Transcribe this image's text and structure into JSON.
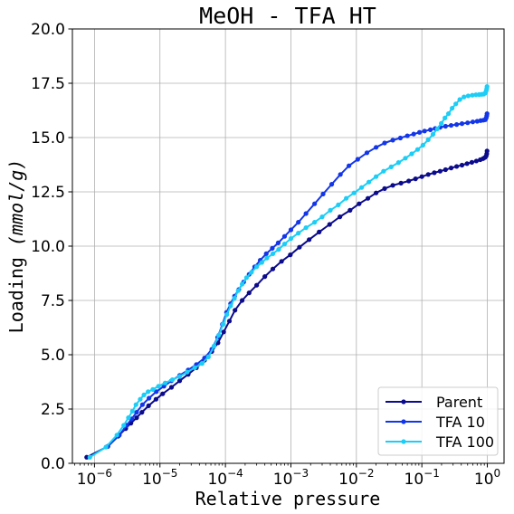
{
  "chart_data": {
    "type": "line",
    "title": "MeOH - TFA HT",
    "xlabel": "Relative pressure",
    "ylabel_main": "Loading ",
    "ylabel_unit": "(mmol/g)",
    "xscale": "log",
    "xlim": [
      4.6e-07,
      1.8
    ],
    "ylim": [
      0.0,
      20.0
    ],
    "grid": true,
    "legend_position": "lower-right",
    "x_ticks": [
      {
        "value": 1e-06,
        "base": "10",
        "exp": "−6"
      },
      {
        "value": 1e-05,
        "base": "10",
        "exp": "−5"
      },
      {
        "value": 0.0001,
        "base": "10",
        "exp": "−4"
      },
      {
        "value": 0.001,
        "base": "10",
        "exp": "−3"
      },
      {
        "value": 0.01,
        "base": "10",
        "exp": "−2"
      },
      {
        "value": 0.1,
        "base": "10",
        "exp": "−1"
      },
      {
        "value": 1,
        "base": "10",
        "exp": "0"
      }
    ],
    "y_ticks": [
      {
        "value": 0.0,
        "label": "0.0"
      },
      {
        "value": 2.5,
        "label": "2.5"
      },
      {
        "value": 5.0,
        "label": "5.0"
      },
      {
        "value": 7.5,
        "label": "7.5"
      },
      {
        "value": 10.0,
        "label": "10.0"
      },
      {
        "value": 12.5,
        "label": "12.5"
      },
      {
        "value": 15.0,
        "label": "15.0"
      },
      {
        "value": 17.5,
        "label": "17.5"
      },
      {
        "value": 20.0,
        "label": "20.0"
      }
    ],
    "series": [
      {
        "name": "Parent",
        "color": "#0b0b8c",
        "points": [
          [
            7.6e-07,
            0.28
          ],
          [
            1.6e-06,
            0.78
          ],
          [
            2.3e-06,
            1.25
          ],
          [
            3e-06,
            1.6
          ],
          [
            3.6e-06,
            1.85
          ],
          [
            4.4e-06,
            2.1
          ],
          [
            5.3e-06,
            2.35
          ],
          [
            6.7e-06,
            2.65
          ],
          [
            8.7e-06,
            2.95
          ],
          [
            1.1e-05,
            3.2
          ],
          [
            1.5e-05,
            3.5
          ],
          [
            2e-05,
            3.8
          ],
          [
            2.7e-05,
            4.1
          ],
          [
            3.6e-05,
            4.4
          ],
          [
            4.8e-05,
            4.75
          ],
          [
            6.2e-05,
            5.15
          ],
          [
            7.7e-05,
            5.55
          ],
          [
            9.4e-05,
            6.05
          ],
          [
            0.000115,
            6.55
          ],
          [
            0.00014,
            7.05
          ],
          [
            0.00018,
            7.5
          ],
          [
            0.00023,
            7.85
          ],
          [
            0.0003,
            8.2
          ],
          [
            0.0004,
            8.6
          ],
          [
            0.00053,
            8.95
          ],
          [
            0.00072,
            9.3
          ],
          [
            0.00098,
            9.6
          ],
          [
            0.00135,
            9.95
          ],
          [
            0.0019,
            10.3
          ],
          [
            0.0027,
            10.65
          ],
          [
            0.0039,
            11.0
          ],
          [
            0.0056,
            11.35
          ],
          [
            0.008,
            11.65
          ],
          [
            0.011,
            11.95
          ],
          [
            0.015,
            12.2
          ],
          [
            0.02,
            12.45
          ],
          [
            0.027,
            12.65
          ],
          [
            0.036,
            12.8
          ],
          [
            0.048,
            12.9
          ],
          [
            0.063,
            13.0
          ],
          [
            0.08,
            13.1
          ],
          [
            0.1,
            13.2
          ],
          [
            0.125,
            13.3
          ],
          [
            0.155,
            13.38
          ],
          [
            0.19,
            13.45
          ],
          [
            0.23,
            13.52
          ],
          [
            0.28,
            13.6
          ],
          [
            0.34,
            13.67
          ],
          [
            0.41,
            13.73
          ],
          [
            0.49,
            13.8
          ],
          [
            0.58,
            13.86
          ],
          [
            0.68,
            13.92
          ],
          [
            0.78,
            13.98
          ],
          [
            0.86,
            14.03
          ],
          [
            0.92,
            14.08
          ],
          [
            0.96,
            14.15
          ],
          [
            0.98,
            14.25
          ],
          [
            0.99,
            14.38
          ]
        ]
      },
      {
        "name": "TFA 10",
        "color": "#1336e8",
        "points": [
          [
            1.6e-06,
            0.78
          ],
          [
            2.4e-06,
            1.3
          ],
          [
            3.1e-06,
            1.75
          ],
          [
            3.7e-06,
            2.05
          ],
          [
            4.4e-06,
            2.35
          ],
          [
            5.4e-06,
            2.7
          ],
          [
            6.8e-06,
            3.0
          ],
          [
            8.8e-06,
            3.3
          ],
          [
            1.15e-05,
            3.55
          ],
          [
            1.5e-05,
            3.8
          ],
          [
            2e-05,
            4.05
          ],
          [
            2.7e-05,
            4.3
          ],
          [
            3.6e-05,
            4.55
          ],
          [
            4.8e-05,
            4.85
          ],
          [
            6.2e-05,
            5.25
          ],
          [
            7.6e-05,
            5.8
          ],
          [
            9e-05,
            6.4
          ],
          [
            0.000104,
            6.95
          ],
          [
            0.00012,
            7.35
          ],
          [
            0.000138,
            7.7
          ],
          [
            0.00016,
            8.0
          ],
          [
            0.00019,
            8.35
          ],
          [
            0.00023,
            8.7
          ],
          [
            0.00028,
            9.05
          ],
          [
            0.00034,
            9.35
          ],
          [
            0.00042,
            9.65
          ],
          [
            0.00052,
            9.9
          ],
          [
            0.00064,
            10.15
          ],
          [
            0.0008,
            10.45
          ],
          [
            0.001,
            10.75
          ],
          [
            0.0013,
            11.1
          ],
          [
            0.0017,
            11.5
          ],
          [
            0.0023,
            11.95
          ],
          [
            0.0031,
            12.4
          ],
          [
            0.0042,
            12.85
          ],
          [
            0.0057,
            13.3
          ],
          [
            0.0077,
            13.7
          ],
          [
            0.0105,
            14.0
          ],
          [
            0.0145,
            14.3
          ],
          [
            0.02,
            14.55
          ],
          [
            0.027,
            14.75
          ],
          [
            0.036,
            14.88
          ],
          [
            0.047,
            14.98
          ],
          [
            0.06,
            15.08
          ],
          [
            0.075,
            15.16
          ],
          [
            0.092,
            15.24
          ],
          [
            0.11,
            15.3
          ],
          [
            0.135,
            15.36
          ],
          [
            0.16,
            15.42
          ],
          [
            0.19,
            15.47
          ],
          [
            0.23,
            15.52
          ],
          [
            0.28,
            15.56
          ],
          [
            0.34,
            15.6
          ],
          [
            0.41,
            15.64
          ],
          [
            0.5,
            15.68
          ],
          [
            0.6,
            15.72
          ],
          [
            0.7,
            15.75
          ],
          [
            0.79,
            15.78
          ],
          [
            0.87,
            15.8
          ],
          [
            0.93,
            15.82
          ],
          [
            0.96,
            15.9
          ],
          [
            0.98,
            16.0
          ],
          [
            0.99,
            16.1
          ]
        ]
      },
      {
        "name": "TFA 100",
        "color": "#1ccdf6",
        "points": [
          [
            8.5e-07,
            0.28
          ],
          [
            1.5e-06,
            0.75
          ],
          [
            2.2e-06,
            1.3
          ],
          [
            2.8e-06,
            1.75
          ],
          [
            3.3e-06,
            2.1
          ],
          [
            3.8e-06,
            2.4
          ],
          [
            4.3e-06,
            2.7
          ],
          [
            5e-06,
            2.95
          ],
          [
            5.7e-06,
            3.15
          ],
          [
            6.6e-06,
            3.3
          ],
          [
            7.8e-06,
            3.4
          ],
          [
            9.5e-06,
            3.55
          ],
          [
            1.2e-05,
            3.7
          ],
          [
            1.55e-05,
            3.85
          ],
          [
            2e-05,
            4.0
          ],
          [
            2.6e-05,
            4.2
          ],
          [
            3.4e-05,
            4.4
          ],
          [
            4.4e-05,
            4.6
          ],
          [
            5.5e-05,
            4.9
          ],
          [
            6.7e-05,
            5.4
          ],
          [
            7.9e-05,
            5.9
          ],
          [
            9.2e-05,
            6.4
          ],
          [
            0.000105,
            6.85
          ],
          [
            0.00012,
            7.25
          ],
          [
            0.000137,
            7.6
          ],
          [
            0.000157,
            7.95
          ],
          [
            0.00018,
            8.25
          ],
          [
            0.00021,
            8.55
          ],
          [
            0.00025,
            8.8
          ],
          [
            0.0003,
            9.05
          ],
          [
            0.00036,
            9.25
          ],
          [
            0.00043,
            9.45
          ],
          [
            0.00053,
            9.65
          ],
          [
            0.00065,
            9.85
          ],
          [
            0.0008,
            10.1
          ],
          [
            0.001,
            10.35
          ],
          [
            0.0013,
            10.6
          ],
          [
            0.0017,
            10.85
          ],
          [
            0.0023,
            11.1
          ],
          [
            0.003,
            11.35
          ],
          [
            0.004,
            11.65
          ],
          [
            0.0053,
            11.9
          ],
          [
            0.007,
            12.2
          ],
          [
            0.0092,
            12.45
          ],
          [
            0.012,
            12.7
          ],
          [
            0.0155,
            12.95
          ],
          [
            0.02,
            13.2
          ],
          [
            0.026,
            13.45
          ],
          [
            0.034,
            13.65
          ],
          [
            0.044,
            13.85
          ],
          [
            0.056,
            14.05
          ],
          [
            0.07,
            14.25
          ],
          [
            0.086,
            14.45
          ],
          [
            0.104,
            14.65
          ],
          [
            0.125,
            14.9
          ],
          [
            0.148,
            15.15
          ],
          [
            0.172,
            15.4
          ],
          [
            0.198,
            15.65
          ],
          [
            0.225,
            15.9
          ],
          [
            0.255,
            16.1
          ],
          [
            0.29,
            16.35
          ],
          [
            0.33,
            16.55
          ],
          [
            0.38,
            16.75
          ],
          [
            0.44,
            16.87
          ],
          [
            0.51,
            16.92
          ],
          [
            0.59,
            16.95
          ],
          [
            0.67,
            16.97
          ],
          [
            0.75,
            16.98
          ],
          [
            0.82,
            16.99
          ],
          [
            0.88,
            17.0
          ],
          [
            0.93,
            17.05
          ],
          [
            0.96,
            17.15
          ],
          [
            0.98,
            17.25
          ],
          [
            0.99,
            17.35
          ]
        ]
      }
    ]
  }
}
